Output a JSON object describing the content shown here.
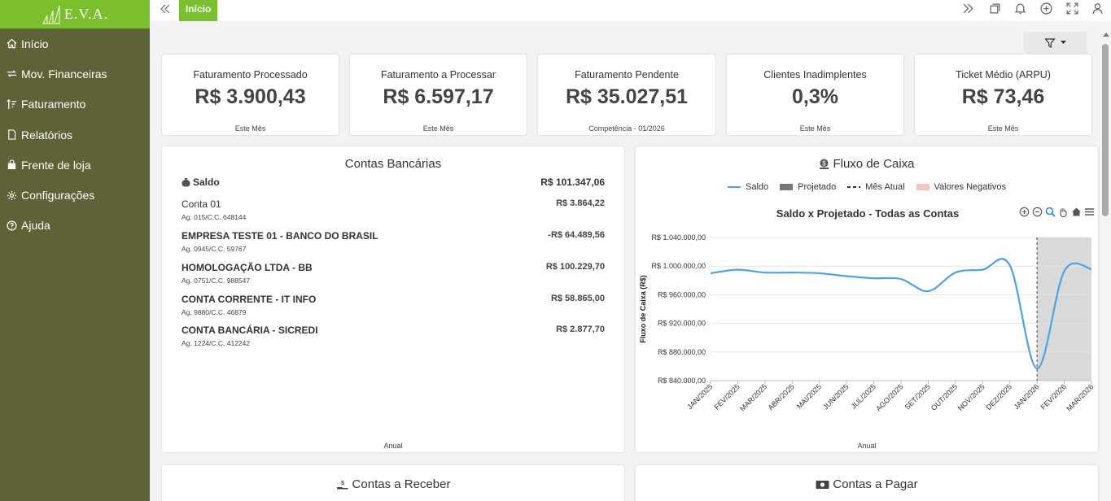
{
  "app": {
    "logo": "E.V.A."
  },
  "sidebar": {
    "items": [
      {
        "label": "Início",
        "icon": "home-icon"
      },
      {
        "label": "Mov. Financeiras",
        "icon": "transfer-icon"
      },
      {
        "label": "Faturamento",
        "icon": "sort-icon"
      },
      {
        "label": "Relatórios",
        "icon": "file-icon"
      },
      {
        "label": "Frente de loja",
        "icon": "bag-icon"
      },
      {
        "label": "Configurações",
        "icon": "gear-icon"
      },
      {
        "label": "Ajuda",
        "icon": "help-icon"
      }
    ]
  },
  "topbar": {
    "tab": "Início"
  },
  "kpis": [
    {
      "title": "Faturamento Processado",
      "value": "R$ 3.900,43",
      "foot": "Este Mês"
    },
    {
      "title": "Faturamento a Processar",
      "value": "R$ 6.597,17",
      "foot": "Este Mês"
    },
    {
      "title": "Faturamento Pendente",
      "value": "R$ 35.027,51",
      "foot": "Competência - 01/2026"
    },
    {
      "title": "Clientes Inadimplentes",
      "value": "0,3%",
      "foot": "Este Mês"
    },
    {
      "title": "Ticket Médio (ARPU)",
      "value": "R$ 73,46",
      "foot": "Este Mês"
    }
  ],
  "bank": {
    "title": "Contas Bancárias",
    "saldo_label": "Saldo",
    "saldo_value": "R$ 101.347,06",
    "accounts": [
      {
        "name": "Conta 01",
        "sub": "Ag. 015/C.C. 648144",
        "value": "R$ 3.864,22"
      },
      {
        "name": "EMPRESA TESTE 01 - BANCO DO BRASIL",
        "sub": "Ag. 0945/C.C. 59767",
        "value": "-R$ 64.489,56"
      },
      {
        "name": "HOMOLOGAÇÃO LTDA - BB",
        "sub": "Ag. 0751/C.C. 988547",
        "value": "R$ 100.229,70"
      },
      {
        "name": "CONTA CORRENTE - IT INFO",
        "sub": "Ag. 9880/C.C. 46879",
        "value": "R$ 58.865,00"
      },
      {
        "name": "CONTA BANCÁRIA - SICREDI",
        "sub": "Ag. 1224/C.C. 412242",
        "value": "R$ 2.877,70"
      }
    ],
    "foot": "Anual"
  },
  "cashflow": {
    "title": "Fluxo de Caixa",
    "legend": [
      "Saldo",
      "Projetado",
      "Mês Atual",
      "Valores Negativos"
    ],
    "foot": "Anual"
  },
  "receivable": {
    "title": "Contas a Receber"
  },
  "payable": {
    "title": "Contas a Pagar"
  },
  "colors": {
    "accent": "#7cbf2e",
    "sidebar": "#5f6136",
    "line": "#4da3e6",
    "projected": "#d9d9d9",
    "negative": "#f7c4c4"
  },
  "chart_data": {
    "type": "line",
    "title": "Saldo x Projetado - Todas as Contas",
    "ylabel": "Fluxo de Caixa (R$)",
    "xlabel": "",
    "categories": [
      "JAN/2025",
      "FEV/2025",
      "MAR/2025",
      "ABR/2025",
      "MAI/2025",
      "JUN/2025",
      "JUL/2025",
      "AGO/2025",
      "SET/2025",
      "OUT/2025",
      "NOV/2025",
      "DEZ/2025",
      "JAN/2026",
      "FEV/2026",
      "MAR/2026"
    ],
    "series": [
      {
        "name": "Saldo",
        "values": [
          990000,
          995000,
          991000,
          991000,
          990000,
          986000,
          983000,
          982000,
          965000,
          991000,
          995000,
          1001000,
          857000,
          993000,
          996000
        ]
      }
    ],
    "yticks": [
      "R$ 840.000,00",
      "R$ 880.000,00",
      "R$ 920.000,00",
      "R$ 960.000,00",
      "R$ 1.000.000,00",
      "R$ 1.040.000,00"
    ],
    "ylim": [
      840000,
      1040000
    ],
    "current_month": "JAN/2026",
    "projected_from": "JAN/2026",
    "grid": true,
    "legend_position": "top"
  }
}
